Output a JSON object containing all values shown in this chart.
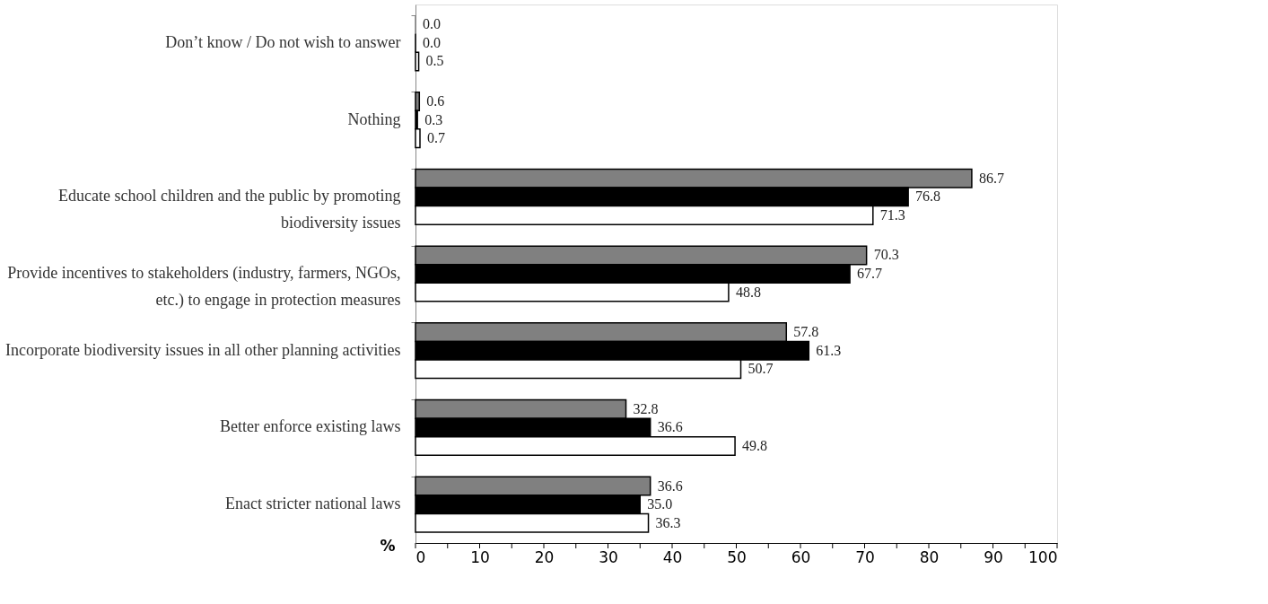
{
  "chart_data": {
    "type": "bar",
    "orientation": "horizontal",
    "xlabel": "%",
    "categories": [
      "Don’t know / Do not wish to answer",
      "Nothing",
      "Educate school children and the public by promoting\nbiodiversity issues",
      "Provide incentives to stakeholders (industry, farmers, NGOs,\netc.) to engage in protection measures",
      "Incorporate biodiversity issues in all other planning activities",
      "Better enforce existing laws",
      "Enact stricter national laws"
    ],
    "series": [
      {
        "color": "#808080",
        "values": [
          0.0,
          0.6,
          86.7,
          70.3,
          57.8,
          32.8,
          36.6
        ],
        "value_labels": [
          "0.0",
          "0.6",
          "86.7",
          "70.3",
          "57.8",
          "32.8",
          "36.6"
        ]
      },
      {
        "color": "#000000",
        "values": [
          0.0,
          0.3,
          76.8,
          67.7,
          61.3,
          36.6,
          35.0
        ],
        "value_labels": [
          "0.0",
          "0.3",
          "76.8",
          "67.7",
          "61.3",
          "36.6",
          "35.0"
        ]
      },
      {
        "color": "#ffffff",
        "values": [
          0.5,
          0.7,
          71.3,
          48.8,
          50.7,
          49.8,
          36.3
        ],
        "value_labels": [
          "0.5",
          "0.7",
          "71.3",
          "48.8",
          "50.7",
          "49.8",
          "36.3"
        ]
      }
    ],
    "xlim": [
      0,
      100
    ],
    "xticks": [
      0,
      {
        "value": 5,
        "label": null
      },
      10,
      {
        "value": 15,
        "label": null
      },
      20,
      {
        "value": 25,
        "label": null
      },
      30,
      {
        "value": 35,
        "label": null
      },
      40,
      {
        "value": 45,
        "label": null
      },
      50,
      {
        "value": 55,
        "label": null
      },
      60,
      {
        "value": 65,
        "label": null
      },
      70,
      {
        "value": 75,
        "label": null
      },
      80,
      {
        "value": 85,
        "label": null
      },
      90,
      {
        "value": 95,
        "label": null
      },
      100
    ],
    "grid": false,
    "legend": false
  }
}
